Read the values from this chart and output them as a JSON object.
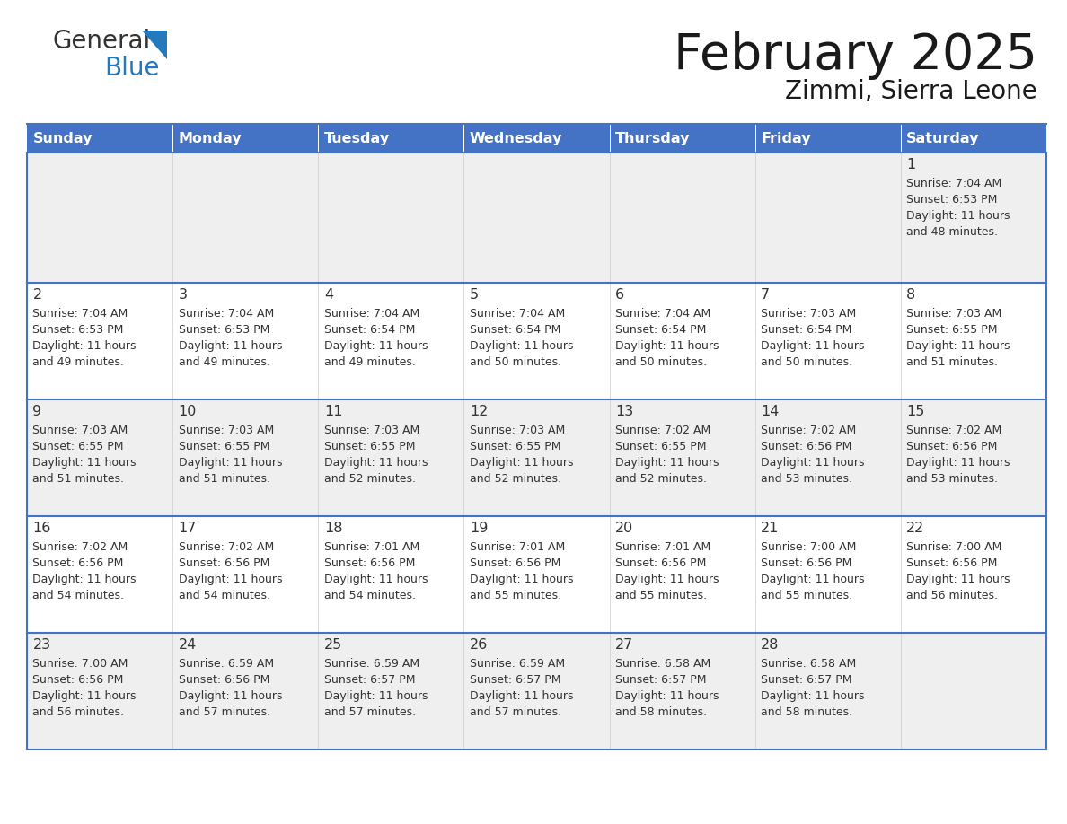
{
  "title": "February 2025",
  "subtitle": "Zimmi, Sierra Leone",
  "days_of_week": [
    "Sunday",
    "Monday",
    "Tuesday",
    "Wednesday",
    "Thursday",
    "Friday",
    "Saturday"
  ],
  "header_bg": "#4472C4",
  "header_text_color": "#FFFFFF",
  "cell_bg_odd": "#EFEFEF",
  "cell_bg_even": "#FFFFFF",
  "cell_text_color": "#333333",
  "day_num_color": "#333333",
  "border_color": "#4472C4",
  "week_data": [
    {
      "week": 1,
      "days": [
        {
          "day": null,
          "col": 0
        },
        {
          "day": null,
          "col": 1
        },
        {
          "day": null,
          "col": 2
        },
        {
          "day": null,
          "col": 3
        },
        {
          "day": null,
          "col": 4
        },
        {
          "day": null,
          "col": 5
        },
        {
          "day": 1,
          "col": 6,
          "sunrise": "7:04 AM",
          "sunset": "6:53 PM",
          "daylight_hours": 11,
          "daylight_minutes": 48
        }
      ]
    },
    {
      "week": 2,
      "days": [
        {
          "day": 2,
          "col": 0,
          "sunrise": "7:04 AM",
          "sunset": "6:53 PM",
          "daylight_hours": 11,
          "daylight_minutes": 49
        },
        {
          "day": 3,
          "col": 1,
          "sunrise": "7:04 AM",
          "sunset": "6:53 PM",
          "daylight_hours": 11,
          "daylight_minutes": 49
        },
        {
          "day": 4,
          "col": 2,
          "sunrise": "7:04 AM",
          "sunset": "6:54 PM",
          "daylight_hours": 11,
          "daylight_minutes": 49
        },
        {
          "day": 5,
          "col": 3,
          "sunrise": "7:04 AM",
          "sunset": "6:54 PM",
          "daylight_hours": 11,
          "daylight_minutes": 50
        },
        {
          "day": 6,
          "col": 4,
          "sunrise": "7:04 AM",
          "sunset": "6:54 PM",
          "daylight_hours": 11,
          "daylight_minutes": 50
        },
        {
          "day": 7,
          "col": 5,
          "sunrise": "7:03 AM",
          "sunset": "6:54 PM",
          "daylight_hours": 11,
          "daylight_minutes": 50
        },
        {
          "day": 8,
          "col": 6,
          "sunrise": "7:03 AM",
          "sunset": "6:55 PM",
          "daylight_hours": 11,
          "daylight_minutes": 51
        }
      ]
    },
    {
      "week": 3,
      "days": [
        {
          "day": 9,
          "col": 0,
          "sunrise": "7:03 AM",
          "sunset": "6:55 PM",
          "daylight_hours": 11,
          "daylight_minutes": 51
        },
        {
          "day": 10,
          "col": 1,
          "sunrise": "7:03 AM",
          "sunset": "6:55 PM",
          "daylight_hours": 11,
          "daylight_minutes": 51
        },
        {
          "day": 11,
          "col": 2,
          "sunrise": "7:03 AM",
          "sunset": "6:55 PM",
          "daylight_hours": 11,
          "daylight_minutes": 52
        },
        {
          "day": 12,
          "col": 3,
          "sunrise": "7:03 AM",
          "sunset": "6:55 PM",
          "daylight_hours": 11,
          "daylight_minutes": 52
        },
        {
          "day": 13,
          "col": 4,
          "sunrise": "7:02 AM",
          "sunset": "6:55 PM",
          "daylight_hours": 11,
          "daylight_minutes": 52
        },
        {
          "day": 14,
          "col": 5,
          "sunrise": "7:02 AM",
          "sunset": "6:56 PM",
          "daylight_hours": 11,
          "daylight_minutes": 53
        },
        {
          "day": 15,
          "col": 6,
          "sunrise": "7:02 AM",
          "sunset": "6:56 PM",
          "daylight_hours": 11,
          "daylight_minutes": 53
        }
      ]
    },
    {
      "week": 4,
      "days": [
        {
          "day": 16,
          "col": 0,
          "sunrise": "7:02 AM",
          "sunset": "6:56 PM",
          "daylight_hours": 11,
          "daylight_minutes": 54
        },
        {
          "day": 17,
          "col": 1,
          "sunrise": "7:02 AM",
          "sunset": "6:56 PM",
          "daylight_hours": 11,
          "daylight_minutes": 54
        },
        {
          "day": 18,
          "col": 2,
          "sunrise": "7:01 AM",
          "sunset": "6:56 PM",
          "daylight_hours": 11,
          "daylight_minutes": 54
        },
        {
          "day": 19,
          "col": 3,
          "sunrise": "7:01 AM",
          "sunset": "6:56 PM",
          "daylight_hours": 11,
          "daylight_minutes": 55
        },
        {
          "day": 20,
          "col": 4,
          "sunrise": "7:01 AM",
          "sunset": "6:56 PM",
          "daylight_hours": 11,
          "daylight_minutes": 55
        },
        {
          "day": 21,
          "col": 5,
          "sunrise": "7:00 AM",
          "sunset": "6:56 PM",
          "daylight_hours": 11,
          "daylight_minutes": 55
        },
        {
          "day": 22,
          "col": 6,
          "sunrise": "7:00 AM",
          "sunset": "6:56 PM",
          "daylight_hours": 11,
          "daylight_minutes": 56
        }
      ]
    },
    {
      "week": 5,
      "days": [
        {
          "day": 23,
          "col": 0,
          "sunrise": "7:00 AM",
          "sunset": "6:56 PM",
          "daylight_hours": 11,
          "daylight_minutes": 56
        },
        {
          "day": 24,
          "col": 1,
          "sunrise": "6:59 AM",
          "sunset": "6:56 PM",
          "daylight_hours": 11,
          "daylight_minutes": 57
        },
        {
          "day": 25,
          "col": 2,
          "sunrise": "6:59 AM",
          "sunset": "6:57 PM",
          "daylight_hours": 11,
          "daylight_minutes": 57
        },
        {
          "day": 26,
          "col": 3,
          "sunrise": "6:59 AM",
          "sunset": "6:57 PM",
          "daylight_hours": 11,
          "daylight_minutes": 57
        },
        {
          "day": 27,
          "col": 4,
          "sunrise": "6:58 AM",
          "sunset": "6:57 PM",
          "daylight_hours": 11,
          "daylight_minutes": 58
        },
        {
          "day": 28,
          "col": 5,
          "sunrise": "6:58 AM",
          "sunset": "6:57 PM",
          "daylight_hours": 11,
          "daylight_minutes": 58
        },
        {
          "day": null,
          "col": 6
        }
      ]
    }
  ],
  "logo_color_general": "#333333",
  "logo_color_blue": "#2479BD"
}
